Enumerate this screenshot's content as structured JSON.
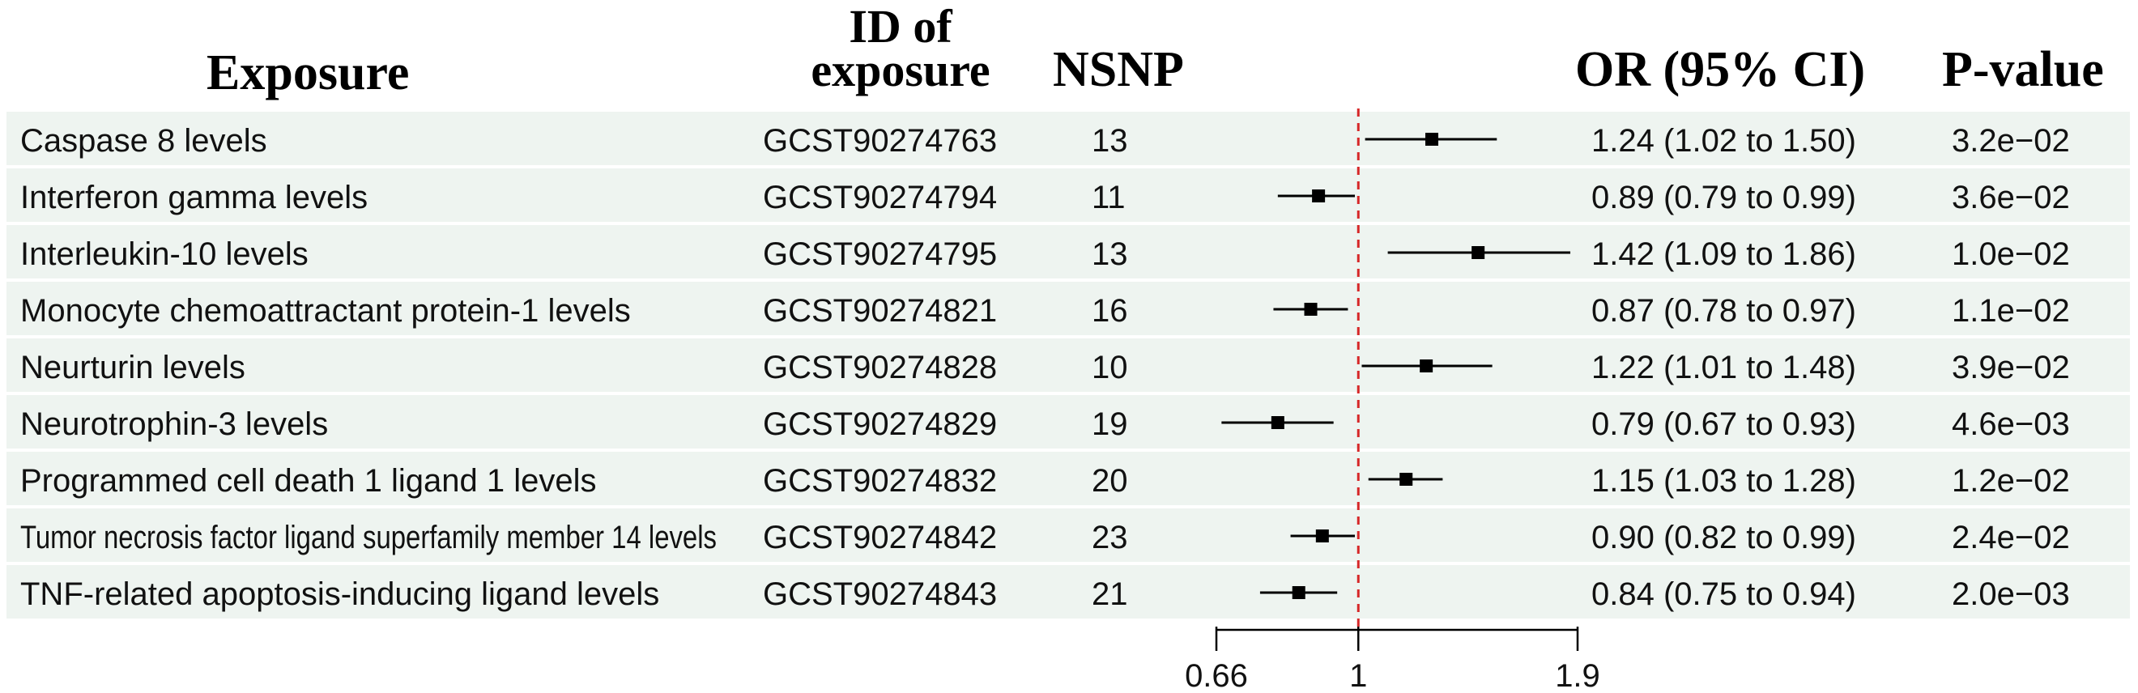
{
  "chart_data": {
    "type": "forest",
    "columns": {
      "exposure": "Exposure",
      "id_line1": "ID of",
      "id_line2": "exposure",
      "nsnp": "NSNP",
      "or_ci": "OR (95% CI)",
      "pvalue": "P-value"
    },
    "x_ticks": [
      "0.66",
      "1",
      "1.9"
    ],
    "x_tick_values": [
      0.66,
      1,
      1.9
    ],
    "xlim": [
      0.66,
      1.9
    ],
    "x_scale": "log",
    "reference_value": 1,
    "reference_color": "#d62728",
    "row_shading": "#eef4f0",
    "rows": [
      {
        "exposure": "Caspase 8 levels",
        "id": "GCST90274763",
        "nsnp": "13",
        "or": 1.24,
        "lo": 1.02,
        "hi": 1.5,
        "or_text": "1.24 (1.02 to 1.50)",
        "p": "3.2e−02"
      },
      {
        "exposure": "Interferon gamma levels",
        "id": "GCST90274794",
        "nsnp": "11",
        "or": 0.89,
        "lo": 0.79,
        "hi": 0.99,
        "or_text": "0.89 (0.79 to 0.99)",
        "p": "3.6e−02"
      },
      {
        "exposure": "Interleukin-10 levels",
        "id": "GCST90274795",
        "nsnp": "13",
        "or": 1.42,
        "lo": 1.09,
        "hi": 1.86,
        "or_text": "1.42 (1.09 to 1.86)",
        "p": "1.0e−02"
      },
      {
        "exposure": "Monocyte chemoattractant protein-1 levels",
        "id": "GCST90274821",
        "nsnp": "16",
        "or": 0.87,
        "lo": 0.78,
        "hi": 0.97,
        "or_text": "0.87 (0.78 to 0.97)",
        "p": "1.1e−02"
      },
      {
        "exposure": "Neurturin levels",
        "id": "GCST90274828",
        "nsnp": "10",
        "or": 1.22,
        "lo": 1.01,
        "hi": 1.48,
        "or_text": "1.22 (1.01 to 1.48)",
        "p": "3.9e−02"
      },
      {
        "exposure": "Neurotrophin-3 levels",
        "id": "GCST90274829",
        "nsnp": "19",
        "or": 0.79,
        "lo": 0.67,
        "hi": 0.93,
        "or_text": "0.79 (0.67 to 0.93)",
        "p": "4.6e−03"
      },
      {
        "exposure": "Programmed cell death 1 ligand 1 levels",
        "id": "GCST90274832",
        "nsnp": "20",
        "or": 1.15,
        "lo": 1.03,
        "hi": 1.28,
        "or_text": "1.15 (1.03 to 1.28)",
        "p": "1.2e−02"
      },
      {
        "exposure": "Tumor necrosis factor ligand superfamily member 14 levels",
        "id": "GCST90274842",
        "nsnp": "23",
        "or": 0.9,
        "lo": 0.82,
        "hi": 0.99,
        "or_text": "0.90 (0.82 to 0.99)",
        "p": "2.4e−02"
      },
      {
        "exposure": "TNF-related apoptosis-inducing ligand levels",
        "id": "GCST90274843",
        "nsnp": "21",
        "or": 0.84,
        "lo": 0.75,
        "hi": 0.94,
        "or_text": "0.84 (0.75 to 0.94)",
        "p": "2.0e−03"
      }
    ]
  }
}
